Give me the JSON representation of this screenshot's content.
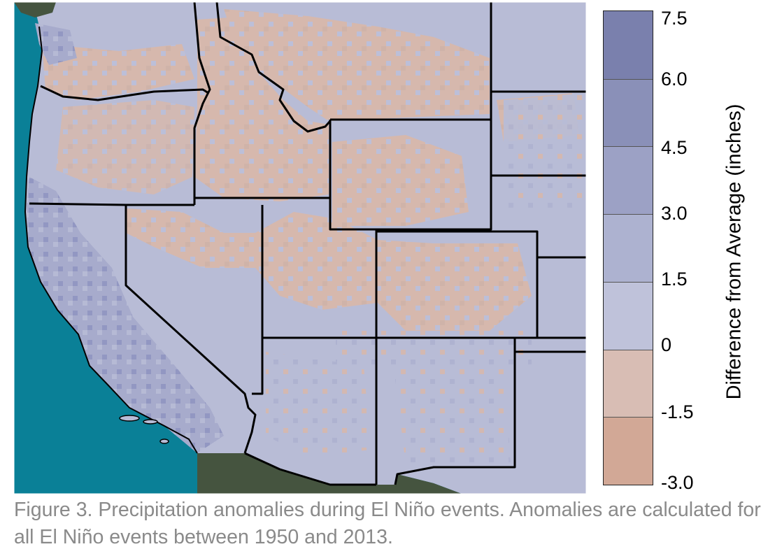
{
  "colorbar": {
    "title": "Difference from Average (inches)",
    "ticks": [
      "7.5",
      "6.0",
      "4.5",
      "3.0",
      "1.5",
      "0",
      "-1.5",
      "-3.0"
    ],
    "colors": [
      "#7a80ad",
      "#8a90b8",
      "#9ca1c5",
      "#adb2d0",
      "#bfc2da",
      "#d8bdb4",
      "#d2a896"
    ]
  },
  "map": {
    "ocean_color": "#0a8097",
    "land_outside_color": "#45543f",
    "positive_color": "#b8bcd6",
    "strong_positive_color": "#9ea3c8",
    "negative_color": "#d6b8ad",
    "border_color": "#000000"
  },
  "caption": {
    "text": "Figure 3. Precipitation anomalies during El Niño events. Anomalies are calculated for all El Niño events between 1950 and 2013."
  }
}
